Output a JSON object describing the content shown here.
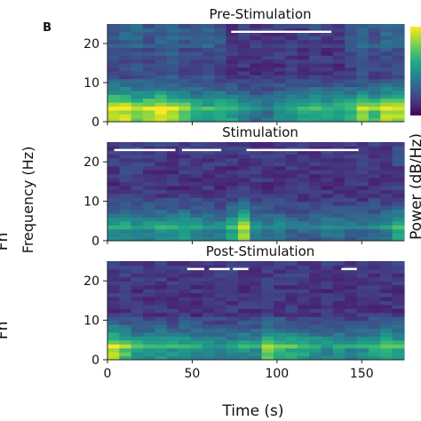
{
  "panel_letter": "B",
  "cut_text": {
    "left_top": "Fh",
    "left_bottom": "Fh",
    "right_axis_label": "Power (dB/Hz)"
  },
  "colors": {
    "colormap": [
      "#440154",
      "#482475",
      "#414487",
      "#355f8d",
      "#2a788e",
      "#21918c",
      "#22a884",
      "#44bf70",
      "#7ad151",
      "#bddf26",
      "#fde725"
    ],
    "significance_bar": "#ffffff",
    "background": "#ffffff"
  },
  "chart_data": [
    {
      "type": "heatmap",
      "title": "Pre-Stimulation",
      "xlabel": "",
      "ylabel": "",
      "xlim": [
        0,
        175
      ],
      "ylim": [
        0,
        25
      ],
      "yticks": [
        0,
        10,
        20
      ],
      "significance_bars": [
        [
          73,
          84
        ],
        [
          84,
          100
        ],
        [
          100,
          118
        ],
        [
          118,
          132
        ]
      ],
      "low_band": [
        0.95,
        0.9,
        0.8,
        0.85,
        0.95,
        0.85,
        0.7,
        0.6,
        0.55,
        0.6,
        0.55,
        0.4,
        0.35,
        0.35,
        0.45,
        0.5,
        0.55,
        0.6,
        0.55,
        0.55,
        0.6,
        0.8,
        0.7,
        0.9,
        0.85
      ],
      "high_band": [
        0.15,
        0.2,
        0.2,
        0.15,
        0.2,
        0.25,
        0.15,
        0.2,
        0.2,
        0.15,
        0.05,
        0.05,
        0.05,
        0.05,
        0.05,
        0.05,
        0.05,
        0.1,
        0.05,
        0.05,
        0.15,
        0.2,
        0.15,
        0.2,
        0.2
      ]
    },
    {
      "type": "heatmap",
      "title": "Stimulation",
      "xlabel": "",
      "ylabel": "",
      "xlim": [
        0,
        175
      ],
      "ylim": [
        0,
        25
      ],
      "yticks": [
        0,
        10,
        20
      ],
      "significance_bars": [
        [
          4,
          18
        ],
        [
          18,
          40
        ],
        [
          44,
          67
        ],
        [
          82,
          101
        ],
        [
          101,
          148
        ]
      ],
      "low_band": [
        0.45,
        0.5,
        0.45,
        0.45,
        0.5,
        0.45,
        0.5,
        0.45,
        0.4,
        0.4,
        0.55,
        0.85,
        0.45,
        0.35,
        0.35,
        0.3,
        0.3,
        0.3,
        0.35,
        0.35,
        0.3,
        0.3,
        0.35,
        0.4,
        0.55
      ],
      "high_band": [
        0.05,
        0.1,
        0.1,
        0.05,
        0.05,
        0.05,
        0.05,
        0.05,
        0.05,
        0.05,
        0.05,
        0.05,
        0.05,
        0.05,
        0.05,
        0.05,
        0.05,
        0.05,
        0.05,
        0.05,
        0.05,
        0.05,
        0.05,
        0.05,
        0.1
      ]
    },
    {
      "type": "heatmap",
      "title": "Post-Stimulation",
      "xlabel": "Time (s)",
      "ylabel": "Frequency (Hz)",
      "xlim": [
        0,
        175
      ],
      "ylim": [
        0,
        25
      ],
      "yticks": [
        0,
        10,
        20
      ],
      "xticks": [
        0,
        50,
        100,
        150
      ],
      "significance_bars": [
        [
          47,
          57
        ],
        [
          60,
          72
        ],
        [
          74,
          83
        ],
        [
          138,
          147
        ]
      ],
      "low_band": [
        0.85,
        0.7,
        0.55,
        0.5,
        0.55,
        0.5,
        0.5,
        0.45,
        0.45,
        0.4,
        0.45,
        0.5,
        0.45,
        0.75,
        0.65,
        0.6,
        0.55,
        0.5,
        0.45,
        0.5,
        0.45,
        0.5,
        0.55,
        0.6,
        0.55
      ],
      "high_band": [
        0.05,
        0.05,
        0.05,
        0.05,
        0.05,
        0.05,
        0.05,
        0.05,
        0.05,
        0.05,
        0.05,
        0.05,
        0.05,
        0.05,
        0.05,
        0.05,
        0.05,
        0.05,
        0.05,
        0.05,
        0.05,
        0.05,
        0.05,
        0.05,
        0.05
      ]
    }
  ]
}
